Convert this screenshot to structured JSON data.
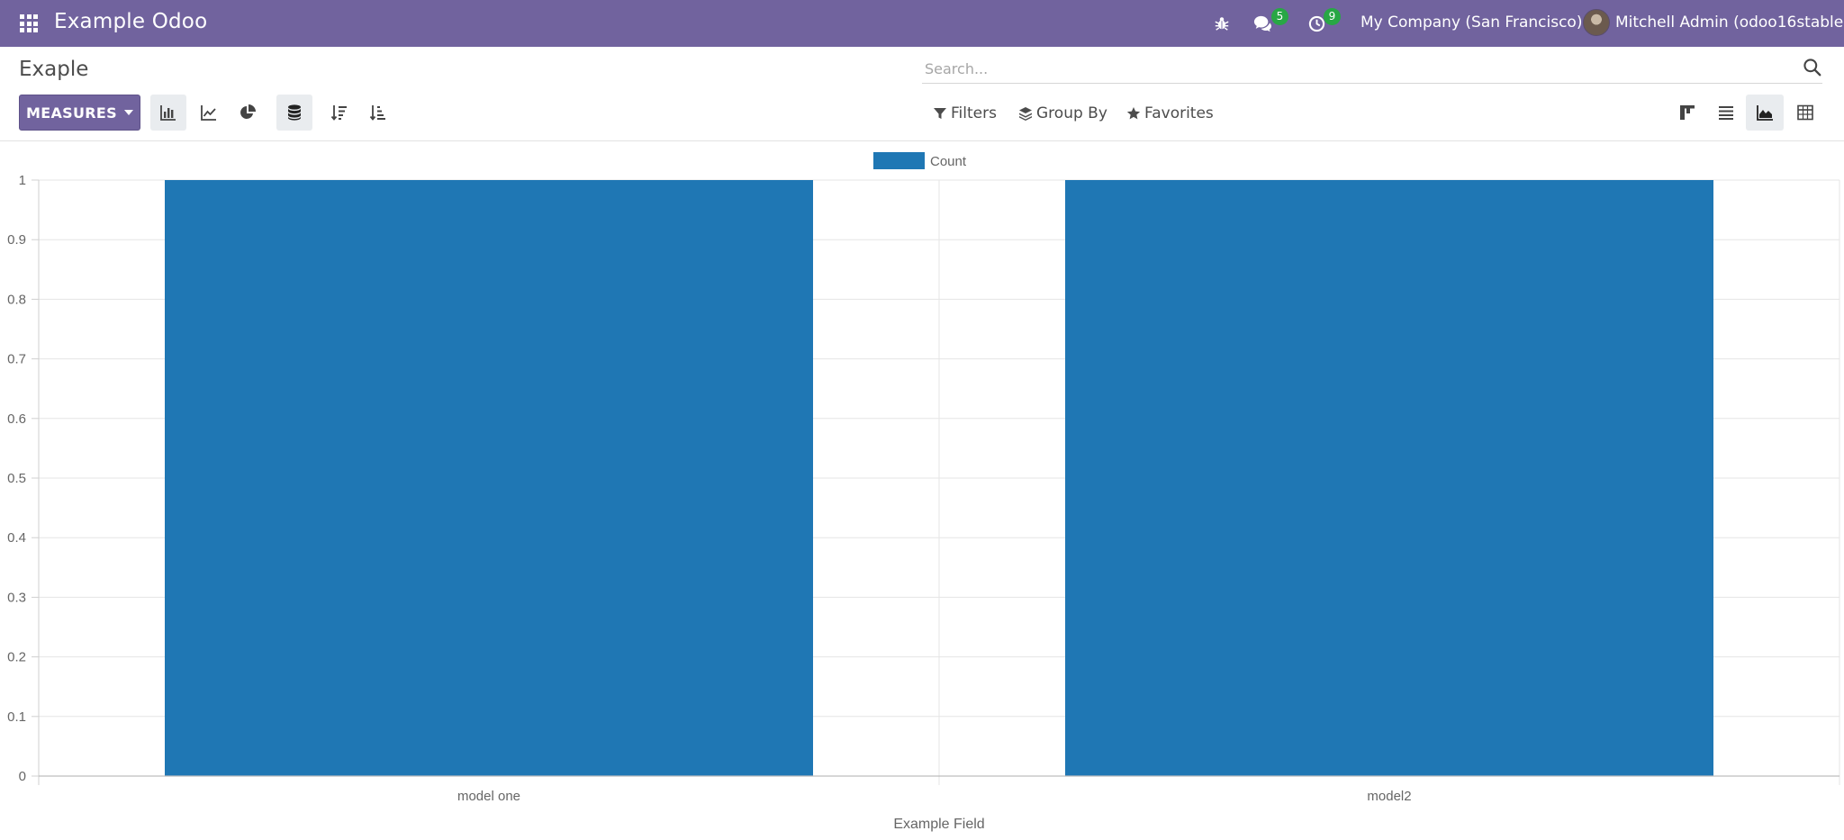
{
  "navbar": {
    "brand": "Example Odoo",
    "messages_badge": "5",
    "activities_badge": "9",
    "company": "My Company (San Francisco)",
    "user": "Mitchell Admin (odoo16stable)"
  },
  "control_panel": {
    "title": "Exaple",
    "search_placeholder": "Search...",
    "measures_label": "MEASURES",
    "filters_label": "Filters",
    "group_by_label": "Group By",
    "favorites_label": "Favorites"
  },
  "colors": {
    "brand": "#71639e",
    "bar": "#1f77b4",
    "badge": "#28a745"
  },
  "chart_data": {
    "type": "bar",
    "categories": [
      "model one",
      "model2"
    ],
    "series": [
      {
        "name": "Count",
        "values": [
          1,
          1
        ]
      }
    ],
    "xlabel": "Example Field",
    "ylabel": "",
    "ylim": [
      0,
      1
    ],
    "yticks": [
      "0",
      "0.1",
      "0.2",
      "0.3",
      "0.4",
      "0.5",
      "0.6",
      "0.7",
      "0.8",
      "0.9",
      "1"
    ],
    "grid": true,
    "legend": "top-center"
  }
}
